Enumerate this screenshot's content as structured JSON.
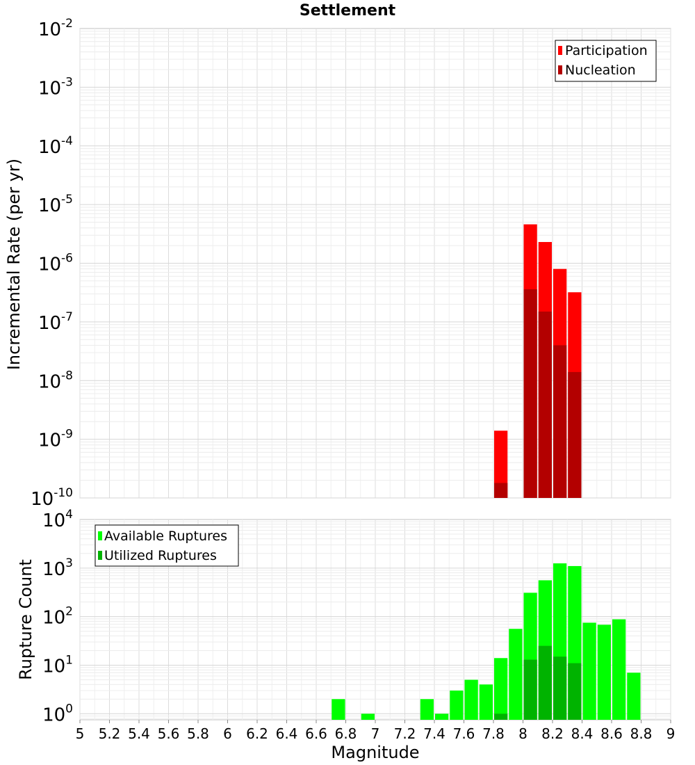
{
  "chart_data": [
    {
      "type": "bar",
      "title": "Settlement",
      "ylabel": "Incremental Rate (per yr)",
      "xlabel": "",
      "xlim": [
        5,
        9
      ],
      "ylim": [
        1e-10,
        0.01
      ],
      "yscale": "log",
      "y_tick_exponents": [
        "-10",
        "-9",
        "-8",
        "-7",
        "-6",
        "-5",
        "-4",
        "-3",
        "-2"
      ],
      "y_tick_base": "10",
      "bar_width": 0.1,
      "legend_position": "top-right",
      "series": [
        {
          "name": "Participation",
          "color": "#ff0000",
          "x": [
            7.85,
            8.05,
            8.15,
            8.25,
            8.35
          ],
          "values": [
            1.4e-09,
            4.6e-06,
            2.3e-06,
            8e-07,
            3.2e-07
          ]
        },
        {
          "name": "Nucleation",
          "color": "#b30000",
          "x": [
            7.85,
            8.05,
            8.15,
            8.25,
            8.35
          ],
          "values": [
            1.8e-10,
            3.6e-07,
            1.5e-07,
            4e-08,
            1.4e-08
          ]
        }
      ]
    },
    {
      "type": "bar",
      "title": "",
      "ylabel": "Rupture Count",
      "xlabel": "Magnitude",
      "xlim": [
        5,
        9
      ],
      "ylim": [
        0.75,
        10000
      ],
      "yscale": "log",
      "y_tick_exponents": [
        "0",
        "1",
        "2",
        "3",
        "4"
      ],
      "y_tick_base": "10",
      "x_ticks": [
        "5",
        "5.2",
        "5.4",
        "5.6",
        "5.8",
        "6",
        "6.2",
        "6.4",
        "6.6",
        "6.8",
        "7",
        "7.2",
        "7.4",
        "7.6",
        "7.8",
        "8",
        "8.2",
        "8.4",
        "8.6",
        "8.8",
        "9"
      ],
      "bar_width": 0.1,
      "legend_position": "top-left",
      "series": [
        {
          "name": "Available Ruptures",
          "color": "#00ff00",
          "x": [
            6.75,
            6.95,
            7.35,
            7.45,
            7.55,
            7.65,
            7.75,
            7.85,
            7.95,
            8.05,
            8.15,
            8.25,
            8.35,
            8.45,
            8.55,
            8.65,
            8.75
          ],
          "values": [
            2,
            1,
            2,
            1,
            3,
            5,
            4,
            14,
            56,
            310,
            560,
            1250,
            1100,
            75,
            68,
            88,
            7
          ]
        },
        {
          "name": "Utilized Ruptures",
          "color": "#00b300",
          "x": [
            7.85,
            8.05,
            8.15,
            8.25,
            8.35
          ],
          "values": [
            1,
            13,
            25,
            15,
            11
          ]
        }
      ]
    }
  ]
}
